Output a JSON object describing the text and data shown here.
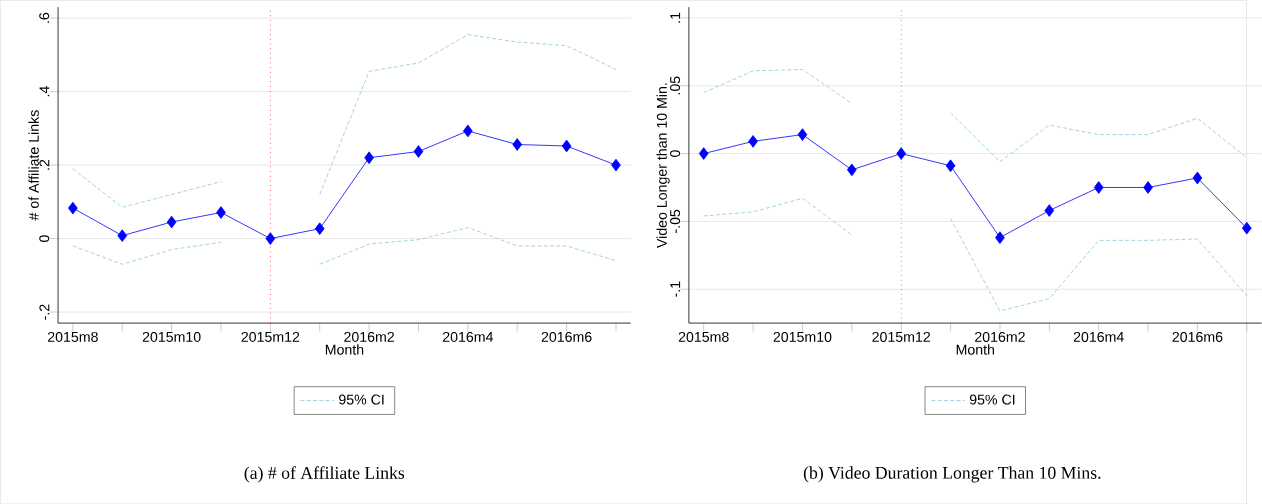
{
  "chart_data": [
    {
      "type": "line",
      "categories": [
        "2015m8",
        null,
        "2015m10",
        null,
        "2015m12",
        null,
        "2016m2",
        null,
        "2016m4",
        null,
        "2016m6",
        null
      ],
      "xlabel": "Month",
      "ylabel": "# of Affiliate Links",
      "ylim": [
        -0.23,
        0.63
      ],
      "yticks": [
        {
          "value": -0.2,
          "label": "-.2"
        },
        0,
        {
          "value": 0.2,
          "label": ".2"
        },
        {
          "value": 0.4,
          "label": ".4"
        },
        {
          "value": 0.6,
          "label": ".6"
        }
      ],
      "grid": "y",
      "legend": "bottom",
      "series": [
        {
          "color": "#0000ff",
          "marker": "diamond",
          "line_style": "solid",
          "values": [
            0.083,
            0.008,
            0.045,
            0.071,
            0,
            0.027,
            0.22,
            0.237,
            0.293,
            0.256,
            0.252,
            0.2
          ]
        },
        {
          "name": "95% CI",
          "color": "#8ac8d8",
          "marker": "none",
          "line_style": "dashed",
          "values": [
            0.19,
            0.085,
            0.12,
            0.155,
            null,
            0.12,
            0.455,
            0.478,
            0.555,
            0.535,
            0.525,
            0.46
          ]
        },
        {
          "color": "#8ac8d8",
          "marker": "none",
          "line_style": "dashed",
          "values": [
            -0.02,
            -0.07,
            -0.03,
            -0.01,
            null,
            -0.07,
            -0.015,
            -0.003,
            0.03,
            -0.02,
            -0.02,
            -0.06
          ]
        }
      ],
      "ref_lines": [
        {
          "axis": "x",
          "value": "2015m12",
          "color": "#ff0000",
          "line_style": "dotted"
        }
      ],
      "annotations": [
        "(a) # of Affiliate Links"
      ]
    },
    {
      "type": "line",
      "categories": [
        "2015m8",
        null,
        "2015m10",
        null,
        "2015m12",
        null,
        "2016m2",
        null,
        "2016m4",
        null,
        "2016m6",
        null
      ],
      "xlabel": "Month",
      "ylabel": "Video Longer than 10 Min.",
      "ylim": [
        -0.125,
        0.108
      ],
      "yticks": [
        {
          "value": -0.1,
          "label": "-.1"
        },
        {
          "value": -0.05,
          "label": "-.05"
        },
        0,
        {
          "value": 0.05,
          "label": ".05"
        },
        {
          "value": 0.1,
          "label": ".1"
        }
      ],
      "grid": "y",
      "legend": "bottom",
      "series": [
        {
          "color": "#0000ff",
          "marker": "diamond",
          "line_style": "solid",
          "values": [
            0,
            0.009,
            0.014,
            -0.012,
            0,
            -0.009,
            -0.062,
            -0.042,
            -0.025,
            -0.025,
            -0.018,
            -0.055
          ]
        },
        {
          "name": "95% CI",
          "color": "#8ac8d8",
          "marker": "none",
          "line_style": "dashed",
          "values": [
            0.045,
            0.061,
            0.062,
            0.037,
            null,
            0.03,
            -0.006,
            0.021,
            0.014,
            0.014,
            0.026,
            -0.003
          ]
        },
        {
          "color": "#8ac8d8",
          "marker": "none",
          "line_style": "dashed",
          "values": [
            -0.046,
            -0.043,
            -0.033,
            -0.06,
            null,
            -0.048,
            -0.116,
            -0.107,
            -0.064,
            -0.064,
            -0.063,
            -0.105
          ]
        }
      ],
      "ref_lines": [
        {
          "axis": "x",
          "value": "2015m12",
          "color": "#ff0000",
          "line_style": "dotted"
        }
      ],
      "annotations": [
        "(b) Video Duration Longer Than 10 Mins."
      ]
    }
  ]
}
